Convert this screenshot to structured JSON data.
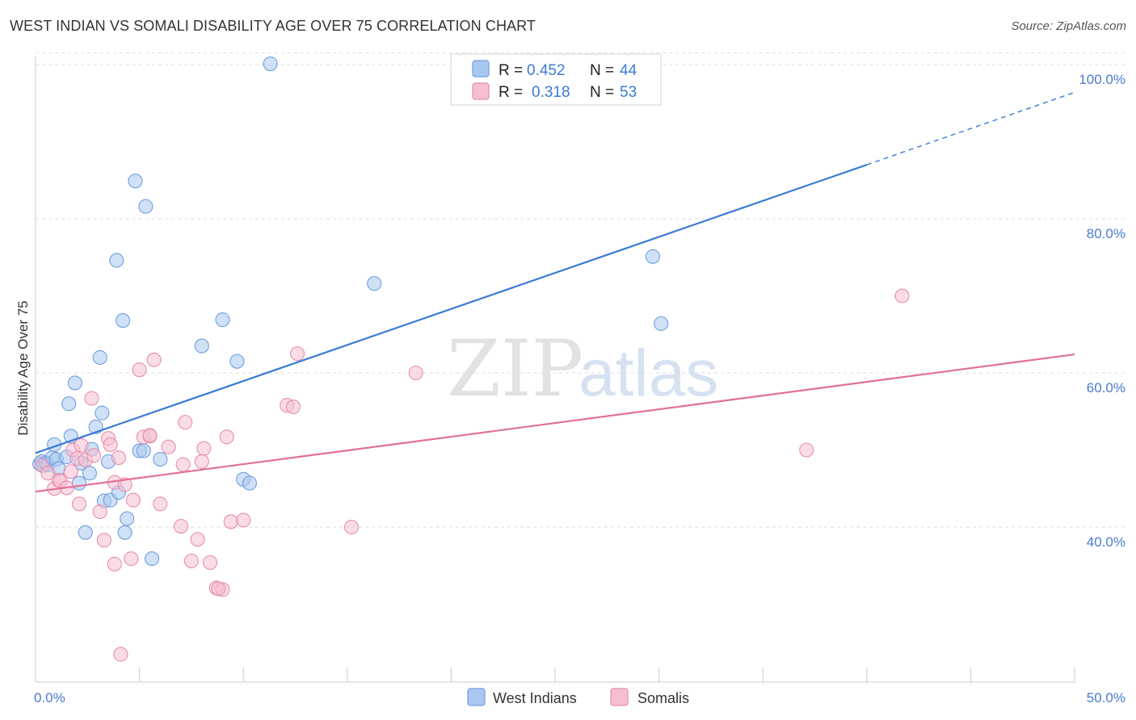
{
  "header": {
    "title": "WEST INDIAN VS SOMALI DISABILITY AGE OVER 75 CORRELATION CHART",
    "source": "Source: ZipAtlas.com"
  },
  "watermark": {
    "zip": "ZIP",
    "atlas": "atlas"
  },
  "colors": {
    "blue": "#3a7bd5",
    "blue_fill": "#a9c8f0",
    "pink": "#e0709a",
    "pink_fill": "#f6bfd1",
    "tick_text": "#4a7bd0",
    "grid": "#dddddd"
  },
  "legend": {
    "r_label": "R =",
    "n_label": "N =",
    "rows": [
      {
        "r": "0.452",
        "n": "44",
        "color": "#3a7bd5",
        "fill": "#a9c8f0"
      },
      {
        "r": "0.318",
        "n": "53",
        "color": "#e0709a",
        "fill": "#f6bfd1"
      }
    ]
  },
  "bottom_legend": [
    {
      "label": "West Indians",
      "fill": "#a9c8f0",
      "stroke": "#6f9fe0"
    },
    {
      "label": "Somalis",
      "fill": "#f6bfd1",
      "stroke": "#e58fae"
    }
  ],
  "chart_data": {
    "type": "scatter",
    "title": "WEST INDIAN VS SOMALI DISABILITY AGE OVER 75 CORRELATION CHART",
    "xlabel": "",
    "ylabel": "Disability Age Over 75",
    "xlim": [
      0,
      50
    ],
    "ylim": [
      20,
      102
    ],
    "x_ticks": [
      0,
      5,
      10,
      15,
      20,
      25,
      30,
      35,
      40,
      45,
      50
    ],
    "x_tick_labels": [
      {
        "value": 0,
        "label": "0.0%"
      },
      {
        "value": 50,
        "label": "50.0%"
      }
    ],
    "y_ticks": [
      {
        "value": 40,
        "label": "40.0%"
      },
      {
        "value": 60,
        "label": "60.0%"
      },
      {
        "value": 80,
        "label": "80.0%"
      },
      {
        "value": 100,
        "label": "100.0%"
      }
    ],
    "grid": true,
    "legend_position": "top-center",
    "series": [
      {
        "name": "West Indians",
        "color": "#3a7bd5",
        "r": 0.452,
        "n": 44,
        "trend": {
          "x0": 0,
          "y0": 49.6,
          "x1": 40,
          "y1": 87.0,
          "dash_x1": 50,
          "dash_y1": 96.4
        },
        "points": [
          [
            0.2,
            48.2
          ],
          [
            0.3,
            48.5
          ],
          [
            0.4,
            48.0
          ],
          [
            0.5,
            48.3
          ],
          [
            0.6,
            48.1
          ],
          [
            0.8,
            49.0
          ],
          [
            0.9,
            50.7
          ],
          [
            1.0,
            48.8
          ],
          [
            1.1,
            47.6
          ],
          [
            1.5,
            49.1
          ],
          [
            1.6,
            56.0
          ],
          [
            1.7,
            51.8
          ],
          [
            1.9,
            58.7
          ],
          [
            2.1,
            45.7
          ],
          [
            2.2,
            48.3
          ],
          [
            2.4,
            39.3
          ],
          [
            2.6,
            47.0
          ],
          [
            2.7,
            50.1
          ],
          [
            2.9,
            53.0
          ],
          [
            3.1,
            62.0
          ],
          [
            3.2,
            54.8
          ],
          [
            3.3,
            43.4
          ],
          [
            3.5,
            48.5
          ],
          [
            3.6,
            43.5
          ],
          [
            3.9,
            74.6
          ],
          [
            4.0,
            44.5
          ],
          [
            4.2,
            66.8
          ],
          [
            4.3,
            39.3
          ],
          [
            4.4,
            41.1
          ],
          [
            4.8,
            84.9
          ],
          [
            5.0,
            49.9
          ],
          [
            5.2,
            49.9
          ],
          [
            5.3,
            81.6
          ],
          [
            5.6,
            35.9
          ],
          [
            6.0,
            48.8
          ],
          [
            8.0,
            63.5
          ],
          [
            9.0,
            66.9
          ],
          [
            9.7,
            61.5
          ],
          [
            10.0,
            46.2
          ],
          [
            10.3,
            45.7
          ],
          [
            11.3,
            100.1
          ],
          [
            16.3,
            71.6
          ],
          [
            29.7,
            75.1
          ],
          [
            30.1,
            66.4
          ]
        ]
      },
      {
        "name": "Somalis",
        "color": "#e0709a",
        "r": 0.318,
        "n": 53,
        "trend": {
          "x0": 0,
          "y0": 44.6,
          "x1": 50,
          "y1": 62.4
        },
        "points": [
          [
            0.3,
            48.0
          ],
          [
            0.6,
            47.0
          ],
          [
            0.9,
            45.0
          ],
          [
            1.1,
            46.1
          ],
          [
            1.2,
            46.0
          ],
          [
            1.5,
            45.1
          ],
          [
            1.7,
            47.2
          ],
          [
            1.8,
            50.0
          ],
          [
            2.0,
            48.9
          ],
          [
            2.1,
            43.0
          ],
          [
            2.2,
            50.6
          ],
          [
            2.4,
            48.7
          ],
          [
            2.7,
            56.7
          ],
          [
            2.8,
            49.3
          ],
          [
            3.1,
            42.0
          ],
          [
            3.3,
            38.3
          ],
          [
            3.5,
            51.5
          ],
          [
            3.6,
            50.7
          ],
          [
            3.8,
            35.2
          ],
          [
            3.8,
            45.8
          ],
          [
            4.0,
            49.0
          ],
          [
            4.1,
            23.5
          ],
          [
            4.3,
            45.5
          ],
          [
            4.6,
            35.9
          ],
          [
            4.7,
            43.5
          ],
          [
            5.0,
            60.4
          ],
          [
            5.2,
            51.7
          ],
          [
            5.5,
            51.8
          ],
          [
            5.7,
            61.7
          ],
          [
            6.0,
            43.0
          ],
          [
            6.4,
            50.4
          ],
          [
            7.0,
            40.1
          ],
          [
            7.1,
            48.1
          ],
          [
            7.2,
            53.6
          ],
          [
            7.5,
            35.6
          ],
          [
            7.8,
            38.4
          ],
          [
            8.0,
            48.5
          ],
          [
            8.1,
            50.2
          ],
          [
            8.4,
            35.4
          ],
          [
            8.7,
            32.1
          ],
          [
            9.0,
            31.9
          ],
          [
            9.2,
            51.7
          ],
          [
            9.4,
            40.7
          ],
          [
            10.0,
            40.9
          ],
          [
            12.1,
            55.8
          ],
          [
            12.4,
            55.6
          ],
          [
            12.6,
            62.5
          ],
          [
            15.2,
            40.0
          ],
          [
            18.3,
            60.0
          ],
          [
            37.1,
            50.0
          ],
          [
            41.7,
            70.0
          ],
          [
            5.5,
            51.9
          ],
          [
            8.8,
            32.0
          ]
        ]
      }
    ]
  }
}
